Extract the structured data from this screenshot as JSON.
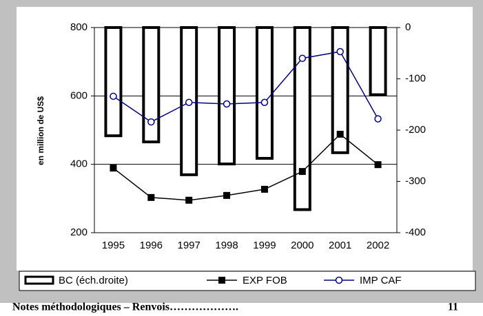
{
  "chart_data": {
    "type": "bar",
    "y_label": "en million de US$",
    "categories": [
      "1995",
      "1996",
      "1997",
      "1998",
      "1999",
      "2000",
      "2001",
      "2002"
    ],
    "series": [
      {
        "name": "BC (éch.droite)",
        "type": "bar",
        "axis": "y2",
        "color": "#ffffff",
        "values": [
          -211,
          -223,
          -287,
          -266,
          -255,
          -355,
          -244,
          -131
        ]
      },
      {
        "name": "EXP FOB",
        "type": "line",
        "color": "#000000",
        "values": [
          389,
          303,
          295,
          309,
          327,
          379,
          488,
          399
        ]
      },
      {
        "name": "IMP CAF",
        "type": "line",
        "axis": "y2",
        "color": "#000080",
        "values": [
          -134,
          -184,
          -146,
          -149,
          -146,
          -60,
          -47,
          -178
        ]
      }
    ],
    "ylim": [
      200,
      800
    ],
    "yticks": [
      200,
      400,
      600,
      800
    ],
    "y2lim": [
      -400,
      0
    ],
    "y2ticks": [
      -400,
      -300,
      -200,
      -100,
      0
    ],
    "grid": true
  },
  "footer": {
    "text": "Notes méthodologiques – Renvois……………….",
    "page": "11"
  }
}
